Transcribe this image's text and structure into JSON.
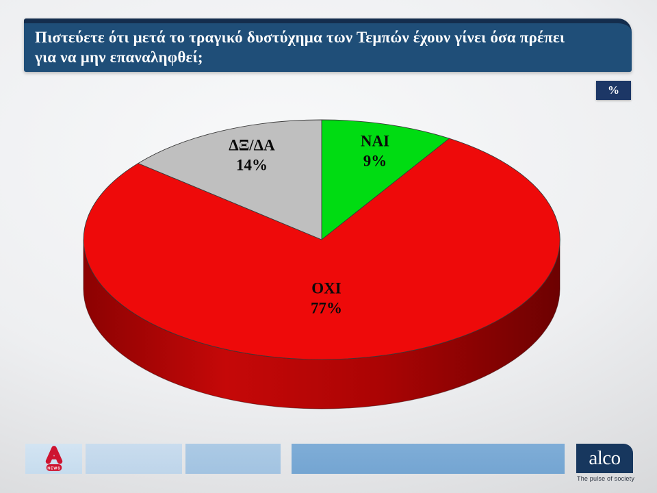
{
  "slide": {
    "title_line1": "Πιστεύετε ότι μετά το τραγικό δυστύχημα των Τεμπών έχουν γίνει όσα πρέπει",
    "title_line2": "για να μην επαναληφθεί;",
    "unit_badge": "%"
  },
  "chart_data": {
    "type": "pie",
    "style": "3d",
    "title": "Πιστεύετε ότι μετά το τραγικό δυστύχημα των Τεμπών έχουν γίνει όσα πρέπει για να μην επαναληφθεί;",
    "unit": "%",
    "start_angle_deg": 0,
    "direction": "clockwise",
    "slices": [
      {
        "label": "ΝΑΙ",
        "value": 9,
        "pct_label": "9%",
        "color": "#00dc12"
      },
      {
        "label": "ΟΧΙ",
        "value": 77,
        "pct_label": "77%",
        "color": "#ee0a0a"
      },
      {
        "label": "ΔΞ/ΔΑ",
        "value": 14,
        "pct_label": "14%",
        "color": "#bfbfbf"
      }
    ],
    "colors": {
      "side_dark": "#6d0101",
      "side_mid": "#c50808",
      "side_left": "#8c0202",
      "outline": "#3c3c3c"
    },
    "legend_position": "none",
    "labels_on_slices": true
  },
  "footer": {
    "alpha_news_text": "NEWS",
    "alco_text": "alco",
    "alco_tagline": "The pulse of society"
  }
}
